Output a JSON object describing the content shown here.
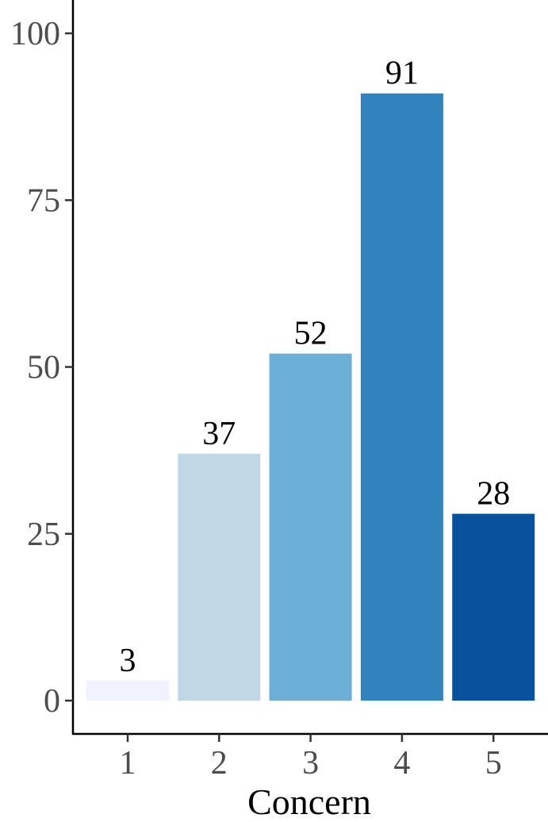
{
  "chart_data": {
    "type": "bar",
    "categories": [
      "1",
      "2",
      "3",
      "4",
      "5"
    ],
    "values": [
      3,
      37,
      52,
      91,
      28
    ],
    "data_labels": [
      "3",
      "37",
      "52",
      "91",
      "28"
    ],
    "colors": [
      "#eff3ff",
      "#c0d7e6",
      "#6baed6",
      "#3182bd",
      "#08519c"
    ],
    "xlabel": "Concern",
    "ylabel": "",
    "ylim": [
      0,
      100
    ],
    "yticks": [
      0,
      25,
      50,
      75,
      100
    ],
    "ytick_labels": [
      "0",
      "25",
      "50",
      "75",
      "100"
    ],
    "grid": false,
    "legend": "none"
  }
}
